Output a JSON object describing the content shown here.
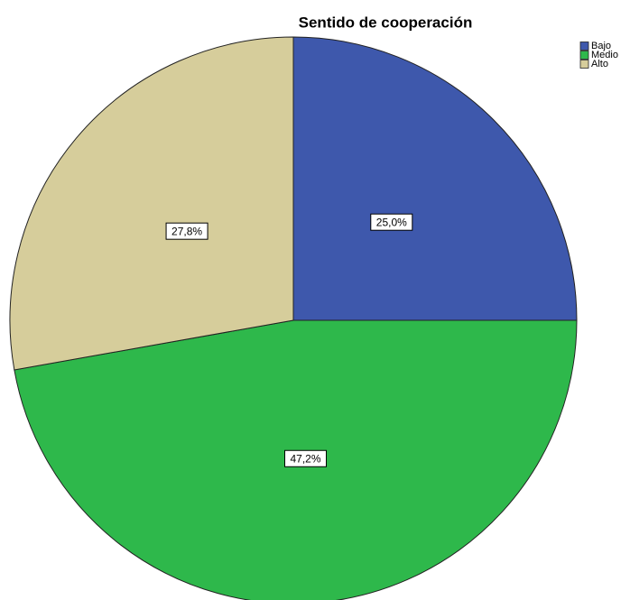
{
  "chart_data": {
    "type": "pie",
    "title": "Sentido de cooperación",
    "categories": [
      "Bajo",
      "Medio",
      "Alto"
    ],
    "values": [
      25.0,
      47.2,
      27.8
    ],
    "value_labels": [
      "25,0%",
      "47,2%",
      "27,8%"
    ],
    "colors": [
      "#3e58ac",
      "#2eb84b",
      "#d6cd9b"
    ],
    "legend": "top-right"
  }
}
